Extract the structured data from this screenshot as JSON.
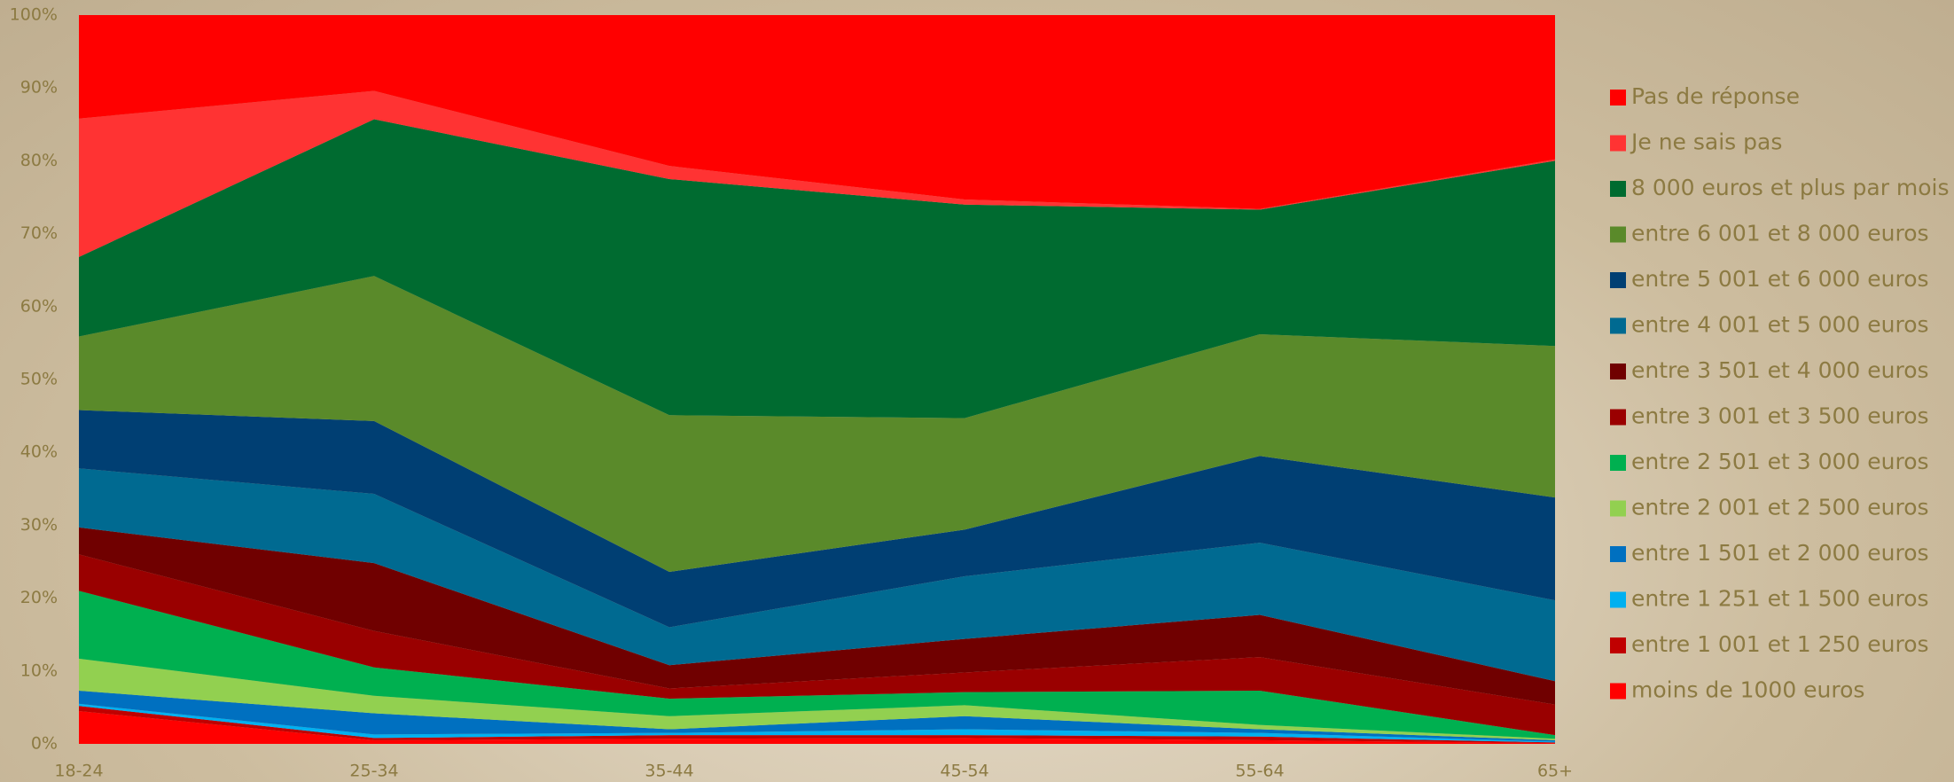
{
  "chart_data": {
    "type": "stacked_area",
    "categories": [
      "18-24",
      "25-34",
      "35-44",
      "45-54",
      "55-64",
      "65+"
    ],
    "ylim": [
      0,
      100
    ],
    "yticks": [
      {
        "value": 0,
        "label": "0%"
      },
      {
        "value": 10,
        "label": "10%"
      },
      {
        "value": 20,
        "label": "20%"
      },
      {
        "value": 30,
        "label": "30%"
      },
      {
        "value": 40,
        "label": "40%"
      },
      {
        "value": 50,
        "label": "50%"
      },
      {
        "value": 60,
        "label": "60%"
      },
      {
        "value": 70,
        "label": "70%"
      },
      {
        "value": 80,
        "label": "80%"
      },
      {
        "value": 90,
        "label": "90%"
      },
      {
        "value": 100,
        "label": "100%"
      }
    ],
    "legend": "right",
    "series": [
      {
        "name": "moins de 1000 euros",
        "color": "#ff0000",
        "values": [
          4.5,
          0.5,
          0.7,
          0.8,
          0.5,
          0.1
        ]
      },
      {
        "name": "entre 1 001 et 1 250 euros",
        "color": "#c00000",
        "values": [
          0.7,
          0.3,
          0.5,
          0.4,
          0.5,
          0.1
        ]
      },
      {
        "name": "entre 1 251 et 1 500 euros",
        "color": "#00b0f0",
        "values": [
          0.3,
          0.5,
          0.3,
          0.8,
          0.5,
          0.1
        ]
      },
      {
        "name": "entre 1 501 et 2 000 euros",
        "color": "#0070c0",
        "values": [
          1.8,
          2.9,
          0.5,
          1.8,
          0.5,
          0.2
        ]
      },
      {
        "name": "entre 2 001 et 2 500 euros",
        "color": "#92d050",
        "values": [
          4.4,
          2.4,
          1.8,
          1.5,
          0.6,
          0.2
        ]
      },
      {
        "name": "entre 2 501 et 3 000 euros",
        "color": "#00b050",
        "values": [
          9.3,
          3.9,
          2.4,
          1.8,
          4.7,
          0.5
        ]
      },
      {
        "name": "entre 3 001 et 3 500 euros",
        "color": "#9a0000",
        "values": [
          5,
          5,
          1.4,
          2.7,
          4.6,
          4.2
        ]
      },
      {
        "name": "entre 3 501 et 4 000 euros",
        "color": "#700000",
        "values": [
          3.7,
          9.3,
          3.2,
          4.6,
          5.8,
          3.2
        ]
      },
      {
        "name": "entre 4 001 et 5 000 euros",
        "color": "#006a91",
        "values": [
          8.1,
          9.5,
          5.2,
          8.6,
          9.9,
          11.1
        ]
      },
      {
        "name": "entre 5 001 et 6 000 euros",
        "color": "#003f73",
        "values": [
          8,
          10,
          7.6,
          6.4,
          11.9,
          14.1
        ]
      },
      {
        "name": "entre 6 001 et 8 000 euros",
        "color": "#5a8a2a",
        "values": [
          10.1,
          19.9,
          21.5,
          15.3,
          16.7,
          20.8
        ]
      },
      {
        "name": "8 000 euros et plus par mois",
        "color": "#006b30",
        "values": [
          10.9,
          21.5,
          32.4,
          29.3,
          17.1,
          25.4
        ]
      },
      {
        "name": "Je ne sais pas",
        "color": "#ff3333",
        "values": [
          19,
          3.9,
          1.8,
          0.7,
          0.1,
          0.2
        ]
      },
      {
        "name": "Pas de réponse",
        "color": "#ff0000",
        "values": [
          14.2,
          10.4,
          20.7,
          25.3,
          26.6,
          19.8
        ]
      }
    ]
  }
}
